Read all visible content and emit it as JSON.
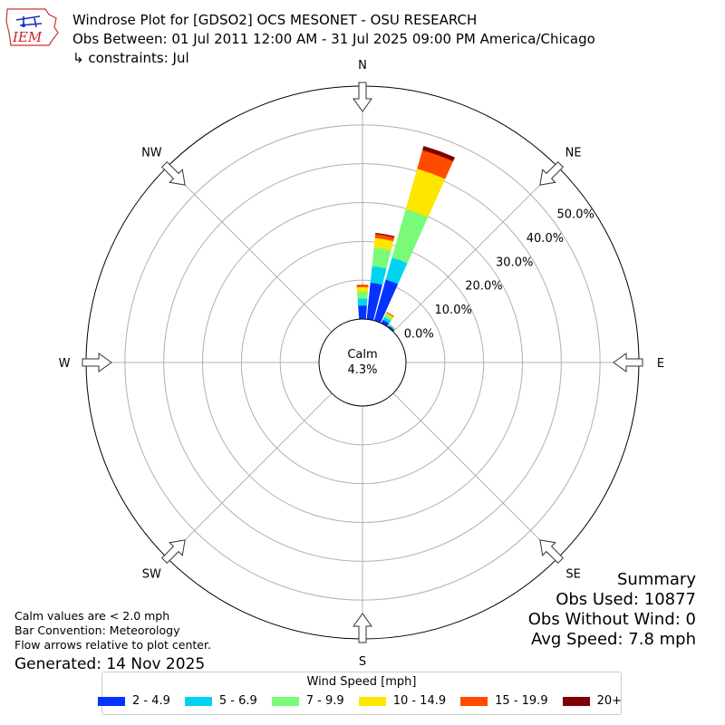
{
  "header": {
    "title_line1": "Windrose Plot for [GDSO2] OCS MESONET - OSU RESEARCH",
    "title_line2": "Obs Between: 01 Jul 2011 12:00 AM - 31 Jul 2025 09:00 PM America/Chicago",
    "title_line3": "↳ constraints: Jul",
    "logo_text": "IEM"
  },
  "notes": {
    "line1": "Calm values are < 2.0 mph",
    "line2": "Bar Convention: Meteorology",
    "line3": "Flow arrows relative to plot center.",
    "generated": "Generated: 14 Nov 2025"
  },
  "summary": {
    "title": "Summary",
    "obs_used": "Obs Used: 10877",
    "obs_without_wind": "Obs Without Wind: 0",
    "avg_speed": "Avg Speed: 7.8 mph"
  },
  "chart_data": {
    "type": "windrose",
    "calm_label": "Calm",
    "calm_value": "4.3%",
    "radial_unit": "%",
    "radial_ticks": [
      "0.0%",
      "10.0%",
      "20.0%",
      "30.0%",
      "40.0%",
      "50.0%"
    ],
    "rmax": 60,
    "directions": [
      "N",
      "NE",
      "E",
      "SE",
      "S",
      "SW",
      "W",
      "NW"
    ],
    "legend_title": "Wind Speed [mph]",
    "bins": [
      {
        "label": "2 - 4.9",
        "color": "#0432ff"
      },
      {
        "label": "5 - 6.9",
        "color": "#00d3f2"
      },
      {
        "label": "7 - 9.9",
        "color": "#79fb79"
      },
      {
        "label": "10 - 14.9",
        "color": "#ffe600"
      },
      {
        "label": "15 - 19.9",
        "color": "#ff4b00"
      },
      {
        "label": "20+",
        "color": "#7f0000"
      }
    ],
    "sectors": [
      {
        "dir_deg": 0,
        "values": [
          3.5,
          1.8,
          1.8,
          1.2,
          0.5,
          0.0
        ]
      },
      {
        "dir_deg": 10,
        "values": [
          9.5,
          4.3,
          4.8,
          2.5,
          1.0,
          0.2
        ]
      },
      {
        "dir_deg": 20,
        "values": [
          11.0,
          5.9,
          13.0,
          10.8,
          5.0,
          1.0
        ]
      },
      {
        "dir_deg": 30,
        "values": [
          1.0,
          0.8,
          0.8,
          0.4,
          0.2,
          0.0
        ]
      },
      {
        "dir_deg": 40,
        "values": [
          0.5,
          0.2,
          0.2,
          0.1,
          0.0,
          0.0
        ]
      }
    ]
  }
}
